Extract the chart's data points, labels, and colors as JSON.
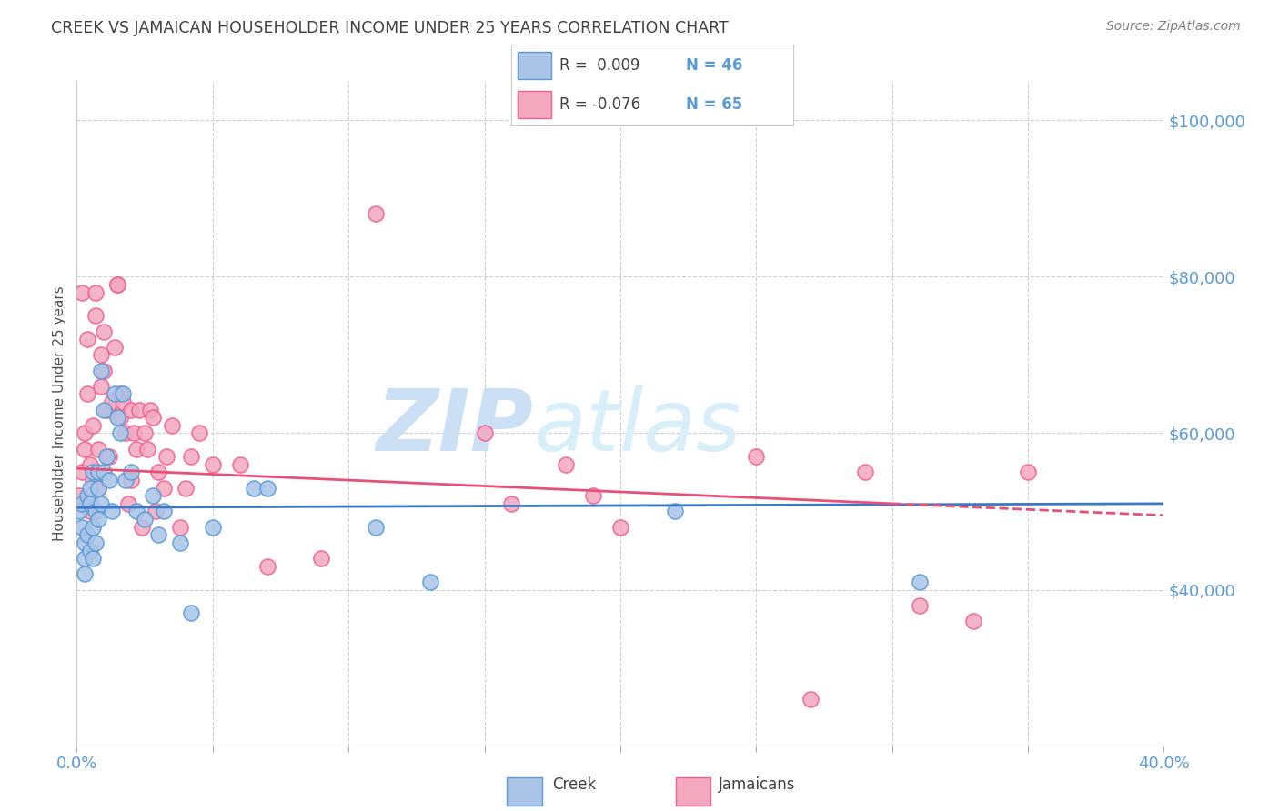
{
  "title": "CREEK VS JAMAICAN HOUSEHOLDER INCOME UNDER 25 YEARS CORRELATION CHART",
  "source": "Source: ZipAtlas.com",
  "ylabel_text": "Householder Income Under 25 years",
  "x_min": 0.0,
  "x_max": 0.4,
  "y_min": 20000,
  "y_max": 105000,
  "x_ticks": [
    0.0,
    0.05,
    0.1,
    0.15,
    0.2,
    0.25,
    0.3,
    0.35,
    0.4
  ],
  "y_ticks": [
    20000,
    40000,
    60000,
    80000,
    100000
  ],
  "creek_color": "#aac4e8",
  "jamaican_color": "#f4a8c0",
  "creek_edge_color": "#5b9bd5",
  "jamaican_edge_color": "#f06090",
  "creek_line_color": "#3a78c9",
  "jamaican_line_color": "#e8507a",
  "title_color": "#404040",
  "axis_label_color": "#5b9bd5",
  "source_color": "#808080",
  "watermark_zip_color": "#cce0f5",
  "watermark_atlas_color": "#d8eef8",
  "grid_color": "#d0d0d0",
  "legend_R_color": "#404040",
  "legend_N_color": "#5b9bd5",
  "creek_trend_y0": 50500,
  "creek_trend_y1": 51000,
  "jamaican_trend_y0": 55500,
  "jamaican_trend_y1": 49500,
  "creek_x": [
    0.001,
    0.002,
    0.002,
    0.003,
    0.003,
    0.003,
    0.004,
    0.004,
    0.005,
    0.005,
    0.005,
    0.006,
    0.006,
    0.006,
    0.007,
    0.007,
    0.008,
    0.008,
    0.008,
    0.009,
    0.009,
    0.01,
    0.01,
    0.011,
    0.012,
    0.013,
    0.014,
    0.015,
    0.016,
    0.017,
    0.018,
    0.02,
    0.022,
    0.025,
    0.028,
    0.03,
    0.032,
    0.038,
    0.042,
    0.05,
    0.065,
    0.07,
    0.11,
    0.13,
    0.22,
    0.31
  ],
  "creek_y": [
    50000,
    51000,
    48000,
    42000,
    46000,
    44000,
    47000,
    52000,
    45000,
    53000,
    51000,
    44000,
    55000,
    48000,
    50000,
    46000,
    53000,
    49000,
    55000,
    68000,
    51000,
    55000,
    63000,
    57000,
    54000,
    50000,
    65000,
    62000,
    60000,
    65000,
    54000,
    55000,
    50000,
    49000,
    52000,
    47000,
    50000,
    46000,
    37000,
    48000,
    53000,
    53000,
    48000,
    41000,
    50000,
    41000
  ],
  "jamaican_x": [
    0.001,
    0.002,
    0.002,
    0.003,
    0.003,
    0.004,
    0.004,
    0.005,
    0.005,
    0.006,
    0.006,
    0.007,
    0.007,
    0.008,
    0.008,
    0.009,
    0.009,
    0.01,
    0.01,
    0.011,
    0.012,
    0.013,
    0.014,
    0.015,
    0.015,
    0.016,
    0.016,
    0.017,
    0.018,
    0.019,
    0.02,
    0.02,
    0.021,
    0.022,
    0.023,
    0.024,
    0.025,
    0.026,
    0.027,
    0.028,
    0.029,
    0.03,
    0.032,
    0.033,
    0.035,
    0.038,
    0.04,
    0.042,
    0.045,
    0.05,
    0.06,
    0.07,
    0.09,
    0.11,
    0.15,
    0.16,
    0.18,
    0.19,
    0.2,
    0.25,
    0.27,
    0.29,
    0.31,
    0.33,
    0.35
  ],
  "jamaican_y": [
    52000,
    55000,
    78000,
    60000,
    58000,
    72000,
    65000,
    56000,
    50000,
    54000,
    61000,
    78000,
    75000,
    53000,
    58000,
    70000,
    66000,
    73000,
    68000,
    63000,
    57000,
    64000,
    71000,
    79000,
    79000,
    62000,
    65000,
    64000,
    60000,
    51000,
    54000,
    63000,
    60000,
    58000,
    63000,
    48000,
    60000,
    58000,
    63000,
    62000,
    50000,
    55000,
    53000,
    57000,
    61000,
    48000,
    53000,
    57000,
    60000,
    56000,
    56000,
    43000,
    44000,
    88000,
    60000,
    51000,
    56000,
    52000,
    48000,
    57000,
    26000,
    55000,
    38000,
    36000,
    55000
  ]
}
